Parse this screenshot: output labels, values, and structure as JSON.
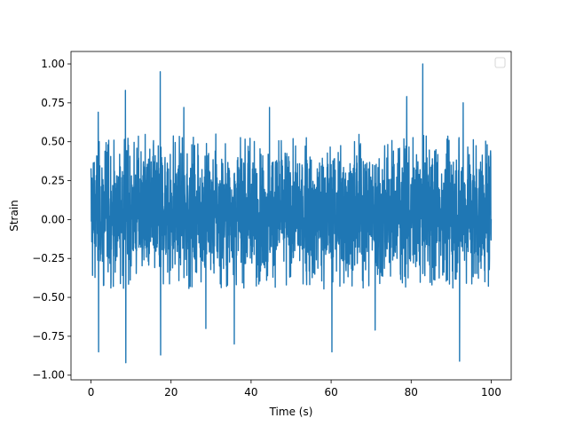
{
  "chart_data": {
    "type": "line",
    "title": "",
    "xlabel": "Time (s)",
    "ylabel": "Strain",
    "xlim": [
      -5,
      105
    ],
    "ylim": [
      -1.03,
      1.08
    ],
    "x_ticks": [
      0,
      20,
      40,
      60,
      80,
      100
    ],
    "x_tick_labels": [
      "0",
      "20",
      "40",
      "60",
      "80",
      "100"
    ],
    "y_ticks": [
      -1.0,
      -0.75,
      -0.5,
      -0.25,
      0.0,
      0.25,
      0.5,
      0.75,
      1.0
    ],
    "y_tick_labels": [
      "−1.00",
      "−0.75",
      "−0.50",
      "−0.25",
      "0.00",
      "0.25",
      "0.50",
      "0.75",
      "1.00"
    ],
    "grid": false,
    "legend": {
      "visible": true,
      "placement": "top-right",
      "entries": []
    },
    "series": [
      {
        "color": "#1f77b4",
        "x_range": [
          0,
          100
        ],
        "typical_band": [
          -0.45,
          0.55
        ],
        "extreme_points": [
          {
            "x": 1.8,
            "y": 0.69
          },
          {
            "x": 1.9,
            "y": -0.85
          },
          {
            "x": 8.6,
            "y": 0.83
          },
          {
            "x": 8.7,
            "y": -0.92
          },
          {
            "x": 17.3,
            "y": 0.95
          },
          {
            "x": 17.4,
            "y": -0.87
          },
          {
            "x": 23.2,
            "y": 0.72
          },
          {
            "x": 28.7,
            "y": -0.7
          },
          {
            "x": 35.8,
            "y": -0.8
          },
          {
            "x": 44.6,
            "y": 0.72
          },
          {
            "x": 60.2,
            "y": -0.85
          },
          {
            "x": 71.0,
            "y": -0.71
          },
          {
            "x": 78.9,
            "y": 0.79
          },
          {
            "x": 82.9,
            "y": 1.0
          },
          {
            "x": 92.1,
            "y": -0.91
          },
          {
            "x": 93.0,
            "y": 0.75
          }
        ]
      }
    ]
  }
}
